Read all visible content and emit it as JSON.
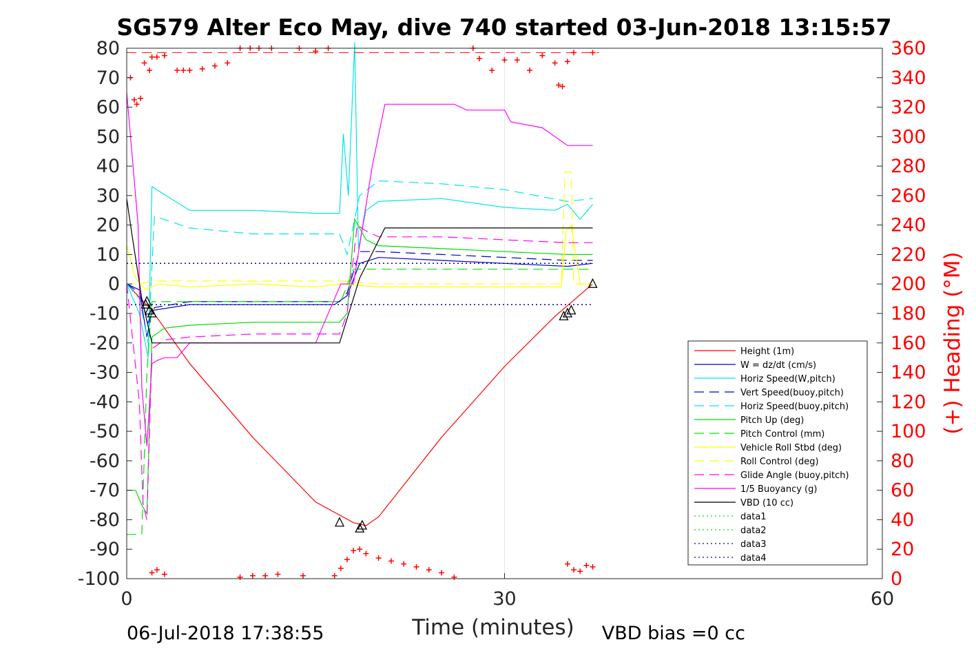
{
  "chart_data": {
    "type": "line",
    "title": "SG579 Alter Eco May, dive 740 started 03-Jun-2018 13:15:57",
    "xlabel": "Time (minutes)",
    "ylabel": "",
    "ylabel_right": "(+) Heading (°M)",
    "xlim": [
      0,
      60
    ],
    "ylim": [
      -100,
      80
    ],
    "ylim_right": [
      0,
      360
    ],
    "x_ticks": [
      "0",
      "30",
      "60"
    ],
    "y_ticks": [
      "80",
      "70",
      "60",
      "50",
      "40",
      "30",
      "20",
      "10",
      "0",
      "-10",
      "-20",
      "-30",
      "-40",
      "-50",
      "-60",
      "-70",
      "-80",
      "-90",
      "-100"
    ],
    "y_ticks_right": [
      "360",
      "340",
      "320",
      "300",
      "280",
      "260",
      "240",
      "220",
      "200",
      "180",
      "160",
      "140",
      "120",
      "100",
      "80",
      "60",
      "40",
      "20",
      "0"
    ],
    "grid": true,
    "legend_position": "bottom-right",
    "footer_left": "06-Jul-2018 17:38:55",
    "footer_right": "VBD bias =0 cc",
    "colors": {
      "red": "#ff0000",
      "blue": "#0000cc",
      "cyan": "#00e5e5",
      "green": "#00dd00",
      "yellow": "#ffff00",
      "magenta": "#ff00ff",
      "black": "#000000"
    },
    "series": [
      {
        "name": "Height (1m)",
        "color": "#ff0000",
        "style": "solid",
        "x": [
          0,
          2,
          5,
          10,
          15,
          18,
          19,
          20,
          25,
          30,
          34,
          37
        ],
        "y": [
          0,
          -9,
          -27,
          -52,
          -74,
          -81,
          -82,
          -79,
          -52,
          -28,
          -11,
          0
        ]
      },
      {
        "name": "W = dz/dt (cm/s)",
        "color": "#0000cc",
        "style": "solid",
        "x": [
          0,
          1,
          1.6,
          2,
          5,
          10,
          15,
          16.5,
          17.5,
          18.5,
          20,
          25,
          30,
          35,
          37
        ],
        "y": [
          0,
          -2,
          -18,
          -9,
          -7,
          -7,
          -7,
          -7,
          -4,
          7,
          9,
          8,
          7,
          6,
          7
        ]
      },
      {
        "name": "Horiz Speed(W,pitch)",
        "color": "#00e5e5",
        "style": "solid",
        "x": [
          0,
          1,
          1.7,
          2,
          5,
          10,
          15,
          16.9,
          17.2,
          17.6,
          18.1,
          18.4,
          19,
          20,
          25,
          30,
          34,
          35,
          36,
          37
        ],
        "y": [
          0,
          -10,
          -25,
          33,
          25,
          25,
          24,
          24,
          51,
          30,
          82,
          12,
          25,
          28,
          29,
          26,
          25,
          27,
          22,
          27
        ]
      },
      {
        "name": "Vert Speed(buoy,pitch)",
        "color": "#0000cc",
        "style": "dashed",
        "x": [
          0,
          1,
          1.7,
          2.2,
          5,
          10,
          15,
          16.9,
          17.5,
          18.5,
          20,
          25,
          30,
          35,
          37
        ],
        "y": [
          0,
          -3,
          -13,
          -8,
          -6,
          -6,
          -6,
          -6,
          -3,
          11,
          11,
          10,
          9,
          8,
          8
        ]
      },
      {
        "name": "Horiz Speed(buoy,pitch)",
        "color": "#00e5e5",
        "style": "dashed",
        "x": [
          0,
          1,
          1.7,
          2.2,
          5,
          10,
          15,
          16.9,
          17.5,
          18.5,
          20,
          25,
          30,
          35,
          37
        ],
        "y": [
          0,
          -5,
          -20,
          23,
          19,
          17,
          17,
          17,
          10,
          30,
          35,
          34,
          32,
          28,
          29
        ]
      },
      {
        "name": "Pitch Up (deg)",
        "color": "#00dd00",
        "style": "solid",
        "x": [
          0,
          0.7,
          1.2,
          1.6,
          2,
          3,
          5,
          10,
          15,
          16.9,
          17.5,
          18.1,
          19,
          20,
          25,
          30,
          35,
          37
        ],
        "y": [
          -70,
          -70,
          -75,
          -78,
          -18,
          -15,
          -14,
          -13,
          -13,
          -13,
          -10,
          22,
          15,
          13,
          12,
          11,
          10,
          10
        ]
      },
      {
        "name": "Pitch Control (mm)",
        "color": "#00dd00",
        "style": "dashed",
        "x": [
          0,
          1.2,
          1.6,
          2,
          5,
          10,
          17,
          18,
          20,
          30,
          37
        ],
        "y": [
          -85,
          -85,
          -30,
          -6,
          -6,
          -6,
          -6,
          5,
          5,
          5,
          5
        ]
      },
      {
        "name": "Vehicle Roll Stbd (deg)",
        "color": "#ffff00",
        "style": "solid",
        "x": [
          0,
          0.7,
          1.5,
          2.5,
          5,
          10,
          15,
          17,
          20,
          30,
          34.5,
          34.9,
          35.3,
          36,
          37
        ],
        "y": [
          13,
          2,
          -2,
          0,
          -1,
          0,
          -1,
          0,
          -1,
          -1,
          -1,
          18,
          20,
          0,
          0
        ]
      },
      {
        "name": "Roll Control (deg)",
        "color": "#ffff00",
        "style": "dashed",
        "x": [
          0,
          1,
          2,
          5,
          10,
          17,
          20,
          30,
          34.5,
          34.8,
          35.3,
          35.5,
          35.8,
          37
        ],
        "y": [
          0,
          0,
          1,
          1,
          1,
          1,
          0,
          0,
          0,
          38,
          38,
          0,
          0,
          0
        ]
      },
      {
        "name": "Glide Angle (buoy,pitch)",
        "color": "#ff00ff",
        "style": "dashed",
        "x": [
          0,
          1,
          1.3,
          1.6,
          2,
          3,
          5,
          10,
          15,
          16.9,
          17.5,
          18.3,
          19,
          20,
          25,
          30,
          35,
          37
        ],
        "y": [
          0,
          -40,
          -75,
          -80,
          -22,
          -19,
          -18,
          -17,
          -17,
          -17,
          -10,
          20,
          18,
          16,
          16,
          15,
          14,
          14
        ]
      },
      {
        "name": "1/5 Buoyancy (g)",
        "color": "#ff00ff",
        "style": "solid",
        "x": [
          0,
          0.3,
          0.9,
          1.2,
          1.6,
          2,
          2.4,
          3,
          4,
          5,
          10,
          15,
          17,
          18,
          19.5,
          20.5,
          26,
          27,
          30,
          30.5,
          33,
          35,
          37
        ],
        "y": [
          65,
          50,
          20,
          -35,
          -55,
          -27,
          -26,
          -25,
          -25,
          -20,
          -20,
          -20,
          0,
          0,
          40,
          61,
          61,
          59,
          59,
          55,
          53,
          47,
          47
        ]
      },
      {
        "name": "VBD (10 cc)",
        "color": "#000000",
        "style": "solid",
        "x": [
          0,
          0.3,
          1.2,
          2,
          5,
          10,
          15,
          16.9,
          18.5,
          20.5,
          30,
          37
        ],
        "y": [
          29,
          20,
          -5,
          -20,
          -20,
          -20,
          -20,
          -20,
          2,
          19,
          19,
          19
        ]
      },
      {
        "name": "data1",
        "color": "#00dd00",
        "style": "dotted",
        "x": [],
        "y": []
      },
      {
        "name": "data2",
        "color": "#00dd00",
        "style": "dotted",
        "x": [],
        "y": []
      },
      {
        "name": "data3",
        "color": "#000099",
        "style": "dotted",
        "x": [
          0,
          37
        ],
        "y": [
          7,
          7
        ]
      },
      {
        "name": "data4",
        "color": "#000099",
        "style": "dotted",
        "x": [
          0,
          37
        ],
        "y": [
          -7,
          -7
        ]
      }
    ],
    "heading": {
      "axis": "right",
      "color": "#ff0000",
      "marker": "+",
      "reference_line": 357,
      "x": [
        0.3,
        0.6,
        0.8,
        1.1,
        1.4,
        1.8,
        2.0,
        2.4,
        3,
        4,
        4.5,
        5,
        6,
        7,
        8,
        9,
        9.8,
        10.5,
        11.5,
        13.7,
        15,
        16,
        16.5,
        17,
        17.5,
        18,
        18.5,
        19,
        20,
        21,
        22,
        23,
        24,
        25,
        26,
        27.5,
        28,
        29,
        30,
        31,
        32,
        33,
        34,
        34.3,
        34.6,
        35,
        35.5,
        37
      ],
      "y": [
        340,
        325,
        322,
        326,
        350,
        345,
        354,
        354,
        355,
        345,
        345,
        345,
        346,
        348,
        350,
        360,
        360,
        360,
        360,
        360,
        358,
        360,
        2,
        7,
        13,
        19,
        20,
        17,
        14,
        12,
        10,
        8,
        6,
        4,
        1,
        360,
        353,
        345,
        352,
        352,
        345,
        355,
        350,
        335,
        334,
        351,
        357,
        357
      ]
    },
    "heading_bottom": {
      "x": [
        2,
        2.4,
        3,
        9,
        10,
        11,
        12,
        14,
        35,
        35.5,
        36,
        36.5,
        37
      ],
      "y": [
        4,
        6,
        3,
        1,
        2,
        2,
        3,
        2,
        10,
        6,
        5,
        9,
        8
      ]
    },
    "markers": {
      "type": "triangles",
      "x": [
        1.5,
        1.6,
        1.8,
        2.0,
        16.9,
        18.5,
        18.7,
        34.7,
        35.0,
        35.3,
        37
      ],
      "y": [
        -7,
        -6,
        -9,
        -10,
        -81,
        -83,
        -82,
        -11,
        -10,
        -9,
        0
      ]
    },
    "legend": [
      "Height (1m)",
      "W = dz/dt (cm/s)",
      "Horiz Speed(W,pitch)",
      "Vert Speed(buoy,pitch)",
      "Horiz Speed(buoy,pitch)",
      "Pitch Up (deg)",
      "Pitch Control (mm)",
      "Vehicle Roll Stbd (deg)",
      "Roll Control (deg)",
      "Glide Angle (buoy,pitch)",
      "1/5 Buoyancy (g)",
      "VBD (10 cc)",
      "data1",
      "data2",
      "data3",
      "data4"
    ]
  }
}
